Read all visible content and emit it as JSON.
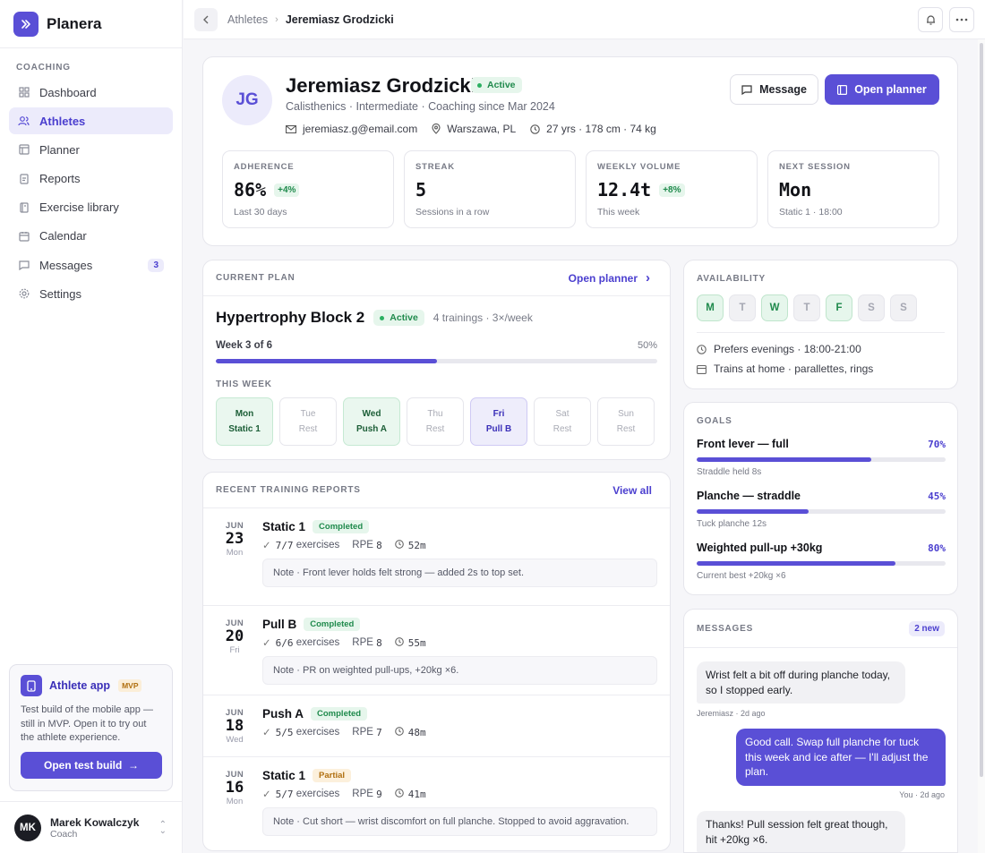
{
  "brand": {
    "name": "Planera"
  },
  "sidebar": {
    "section": "COACHING",
    "items": [
      {
        "label": "Dashboard",
        "icon": "grid-icon"
      },
      {
        "label": "Athletes",
        "icon": "users-icon"
      },
      {
        "label": "Planner",
        "icon": "layout-icon"
      },
      {
        "label": "Reports",
        "icon": "clipboard-icon"
      },
      {
        "label": "Exercise library",
        "icon": "book-icon"
      },
      {
        "label": "Calendar",
        "icon": "calendar-icon"
      },
      {
        "label": "Messages",
        "icon": "message-icon",
        "badge": "3"
      },
      {
        "label": "Settings",
        "icon": "gear-icon"
      }
    ],
    "promo": {
      "title": "Athlete app",
      "badge": "MVP",
      "text": "Test build of the mobile app — still in MVP. Open it to try out the athlete experience.",
      "button": "Open test build",
      "button_arrow": "→"
    },
    "user": {
      "initials": "MK",
      "name": "Marek Kowalczyk",
      "role": "Coach"
    }
  },
  "topbar": {
    "crumb_parent": "Athletes",
    "crumb_sep": "›",
    "crumb_current": "Jeremiasz Grodzicki"
  },
  "athlete": {
    "initials": "JG",
    "name": "Jeremiasz Grodzicki",
    "status": "Active",
    "subtitle": "Calisthenics · Intermediate · Coaching since Mar 2024",
    "email": "jeremiasz.g@email.com",
    "location": "Warszawa, PL",
    "stats_line": "27 yrs · 178 cm · 74 kg",
    "message_btn": "Message",
    "planner_btn": "Open planner"
  },
  "stats": [
    {
      "label": "ADHERENCE",
      "value": "86%",
      "delta": "+4%",
      "sub": "Last 30 days"
    },
    {
      "label": "STREAK",
      "value": "5",
      "delta": "",
      "sub": "Sessions in a row"
    },
    {
      "label": "WEEKLY VOLUME",
      "value": "12.4t",
      "delta": "+8%",
      "sub": "This week"
    },
    {
      "label": "NEXT SESSION",
      "value": "Mon",
      "delta": "",
      "sub": "Static 1 · 18:00"
    }
  ],
  "plan": {
    "label": "CURRENT PLAN",
    "link": "Open planner",
    "link_arrow": "›",
    "title": "Hypertrophy Block 2",
    "status": "Active",
    "meta": "4 trainings · 3×/week",
    "week": "Week 3 of 6",
    "pct_label": "50%",
    "progress": 0.5,
    "this_week": "THIS WEEK",
    "days": [
      {
        "d": "Mon",
        "w": "Static 1",
        "kind": "train"
      },
      {
        "d": "Tue",
        "w": "Rest",
        "kind": "rest"
      },
      {
        "d": "Wed",
        "w": "Push A",
        "kind": "train"
      },
      {
        "d": "Thu",
        "w": "Rest",
        "kind": "rest"
      },
      {
        "d": "Fri",
        "w": "Pull B",
        "kind": "cur"
      },
      {
        "d": "Sat",
        "w": "Rest",
        "kind": "rest"
      },
      {
        "d": "Sun",
        "w": "Rest",
        "kind": "rest"
      }
    ]
  },
  "reports": {
    "label": "RECENT TRAINING REPORTS",
    "link": "View all",
    "exercises_word": "exercises",
    "rpe_word": "RPE",
    "items": [
      {
        "mon": "JUN",
        "day": "23",
        "dow": "Mon",
        "title": "Static 1",
        "status": "Completed",
        "kind": "done",
        "ex": "7/7",
        "rpe": "8",
        "dur": "52m",
        "note": "Note · Front lever holds felt strong — added 2s to top set."
      },
      {
        "mon": "JUN",
        "day": "20",
        "dow": "Fri",
        "title": "Pull B",
        "status": "Completed",
        "kind": "done",
        "ex": "6/6",
        "rpe": "8",
        "dur": "55m",
        "note": "Note · PR on weighted pull-ups, +20kg ×6."
      },
      {
        "mon": "JUN",
        "day": "18",
        "dow": "Wed",
        "title": "Push A",
        "status": "Completed",
        "kind": "done",
        "ex": "5/5",
        "rpe": "7",
        "dur": "48m",
        "note": ""
      },
      {
        "mon": "JUN",
        "day": "16",
        "dow": "Mon",
        "title": "Static 1",
        "status": "Partial",
        "kind": "partial",
        "ex": "5/7",
        "rpe": "9",
        "dur": "41m",
        "note": "Note · Cut short — wrist discomfort on full planche. Stopped to avoid aggravation."
      }
    ]
  },
  "availability": {
    "label": "AVAILABILITY",
    "days": [
      {
        "d": "M",
        "on": true
      },
      {
        "d": "T",
        "on": false
      },
      {
        "d": "W",
        "on": true
      },
      {
        "d": "T",
        "on": false
      },
      {
        "d": "F",
        "on": true
      },
      {
        "d": "S",
        "on": false
      },
      {
        "d": "S",
        "on": false
      }
    ],
    "pref": "Prefers evenings · 18:00-21:00",
    "equipment": "Trains at home · parallettes, rings"
  },
  "goals": {
    "label": "GOALS",
    "items": [
      {
        "name": "Front lever — full",
        "pct": "70%",
        "value": 0.7,
        "sub": "Straddle held 8s"
      },
      {
        "name": "Planche — straddle",
        "pct": "45%",
        "value": 0.45,
        "sub": "Tuck planche 12s"
      },
      {
        "name": "Weighted pull-up +30kg",
        "pct": "80%",
        "value": 0.8,
        "sub": "Current best +20kg ×6"
      }
    ]
  },
  "messages": {
    "label": "MESSAGES",
    "badge": "2 new",
    "items": [
      {
        "dir": "in",
        "text": "Wrist felt a bit off during planche today, so I stopped early.",
        "meta": "Jeremiasz · 2d ago"
      },
      {
        "dir": "out",
        "text": "Good call. Swap full planche for tuck this week and ice after — I'll adjust the plan.",
        "meta": "You · 2d ago"
      },
      {
        "dir": "in",
        "text": "Thanks! Pull session felt great though, hit +20kg ×6.",
        "meta": ""
      }
    ]
  },
  "colors": {
    "accent": "#5a4fd6",
    "success": "#1f8a4c",
    "warning": "#b06f10"
  }
}
